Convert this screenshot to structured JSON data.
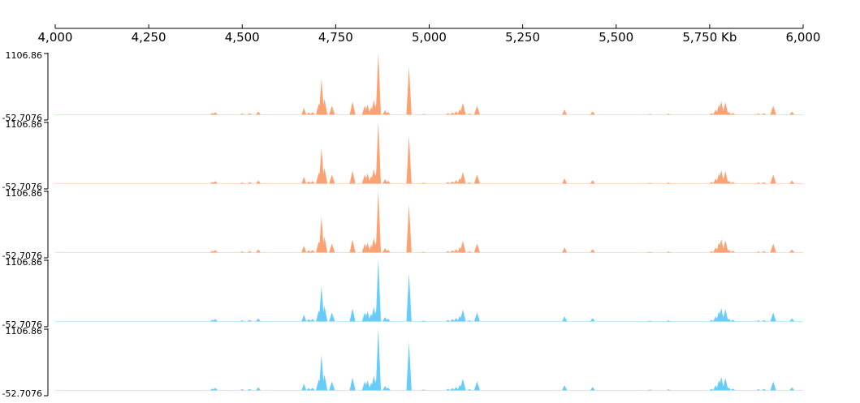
{
  "chart_data": {
    "type": "area",
    "x_axis": {
      "range": [
        4000,
        6000
      ],
      "ticks": [
        4000,
        4250,
        4500,
        4750,
        5000,
        5250,
        5500,
        5750,
        6000
      ],
      "tick_labels": [
        "4,000",
        "4,250",
        "4,500",
        "4,750",
        "5,000",
        "5,250",
        "5,500",
        "5,750 Kb",
        "6,000"
      ]
    },
    "y_range": [
      -52.7076,
      1106.86
    ],
    "y_max_label": "1106.86",
    "y_min_label": "-52.7076",
    "colors": {
      "orange": "#fca272",
      "blue": "#66ccfa"
    },
    "tracks": [
      {
        "color": "#fca272"
      },
      {
        "color": "#fca272"
      },
      {
        "color": "#fca272"
      },
      {
        "color": "#66ccfa"
      },
      {
        "color": "#66ccfa"
      }
    ],
    "peaks": [
      {
        "x": 4420,
        "y": 30
      },
      {
        "x": 4428,
        "y": 45
      },
      {
        "x": 4500,
        "y": 20
      },
      {
        "x": 4520,
        "y": 25
      },
      {
        "x": 4543,
        "y": 55
      },
      {
        "x": 4665,
        "y": 120
      },
      {
        "x": 4678,
        "y": 40
      },
      {
        "x": 4688,
        "y": 45
      },
      {
        "x": 4705,
        "y": 200
      },
      {
        "x": 4712,
        "y": 640
      },
      {
        "x": 4720,
        "y": 280
      },
      {
        "x": 4740,
        "y": 160
      },
      {
        "x": 4795,
        "y": 230
      },
      {
        "x": 4828,
        "y": 160
      },
      {
        "x": 4835,
        "y": 180
      },
      {
        "x": 4845,
        "y": 140
      },
      {
        "x": 4852,
        "y": 260
      },
      {
        "x": 4858,
        "y": 190
      },
      {
        "x": 4864,
        "y": 1106
      },
      {
        "x": 4882,
        "y": 80
      },
      {
        "x": 4890,
        "y": 50
      },
      {
        "x": 4946,
        "y": 860
      },
      {
        "x": 4985,
        "y": 15
      },
      {
        "x": 5050,
        "y": 25
      },
      {
        "x": 5062,
        "y": 40
      },
      {
        "x": 5072,
        "y": 60
      },
      {
        "x": 5082,
        "y": 100
      },
      {
        "x": 5090,
        "y": 210
      },
      {
        "x": 5108,
        "y": 20
      },
      {
        "x": 5128,
        "y": 160
      },
      {
        "x": 5362,
        "y": 90
      },
      {
        "x": 5437,
        "y": 60
      },
      {
        "x": 5590,
        "y": 15
      },
      {
        "x": 5640,
        "y": 18
      },
      {
        "x": 5755,
        "y": 25
      },
      {
        "x": 5766,
        "y": 90
      },
      {
        "x": 5775,
        "y": 180
      },
      {
        "x": 5781,
        "y": 240
      },
      {
        "x": 5792,
        "y": 220
      },
      {
        "x": 5801,
        "y": 50
      },
      {
        "x": 5812,
        "y": 30
      },
      {
        "x": 5880,
        "y": 20
      },
      {
        "x": 5895,
        "y": 25
      },
      {
        "x": 5920,
        "y": 160
      },
      {
        "x": 5970,
        "y": 55
      }
    ]
  }
}
